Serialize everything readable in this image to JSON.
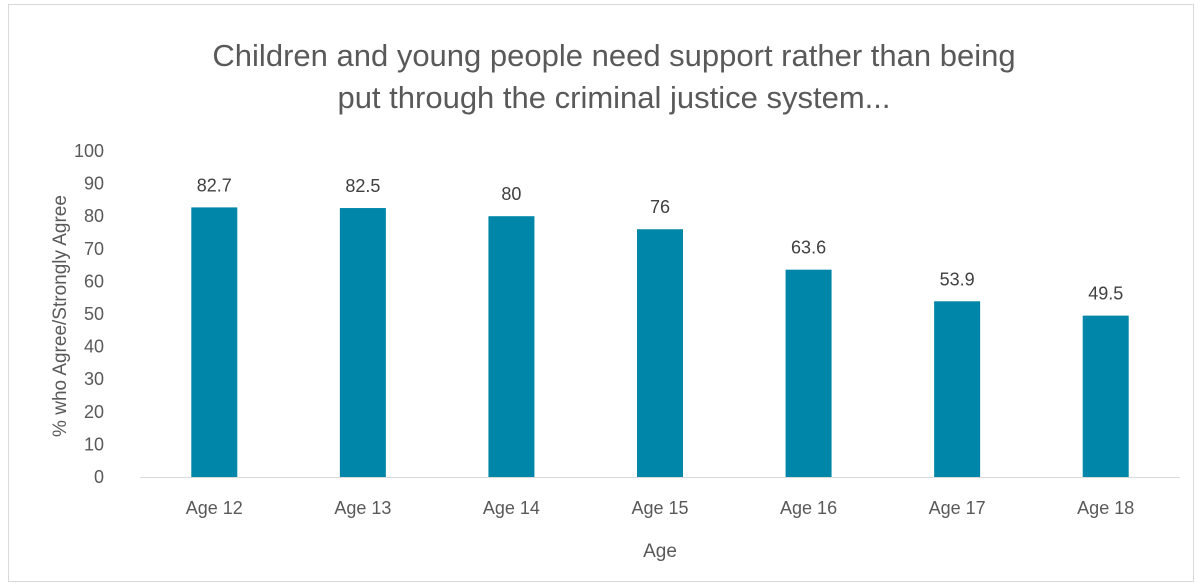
{
  "chart_data": {
    "type": "bar",
    "title_lines": [
      "Children and young people need support rather than being",
      "put through the criminal justice system..."
    ],
    "categories": [
      "Age 12",
      "Age 13",
      "Age 14",
      "Age 15",
      "Age 16",
      "Age 17",
      "Age 18"
    ],
    "values": [
      82.7,
      82.5,
      80,
      76,
      63.6,
      53.9,
      49.5
    ],
    "data_labels": [
      "82.7",
      "82.5",
      "80",
      "76",
      "63.6",
      "53.9",
      "49.5"
    ],
    "xlabel": "Age",
    "ylabel": "% who Agree/Strongly Agree",
    "ylim": [
      0,
      100
    ],
    "yticks": [
      0,
      10,
      20,
      30,
      40,
      50,
      60,
      70,
      80,
      90,
      100
    ],
    "grid": false,
    "legend": "none",
    "bar_color": "#0086A8"
  }
}
